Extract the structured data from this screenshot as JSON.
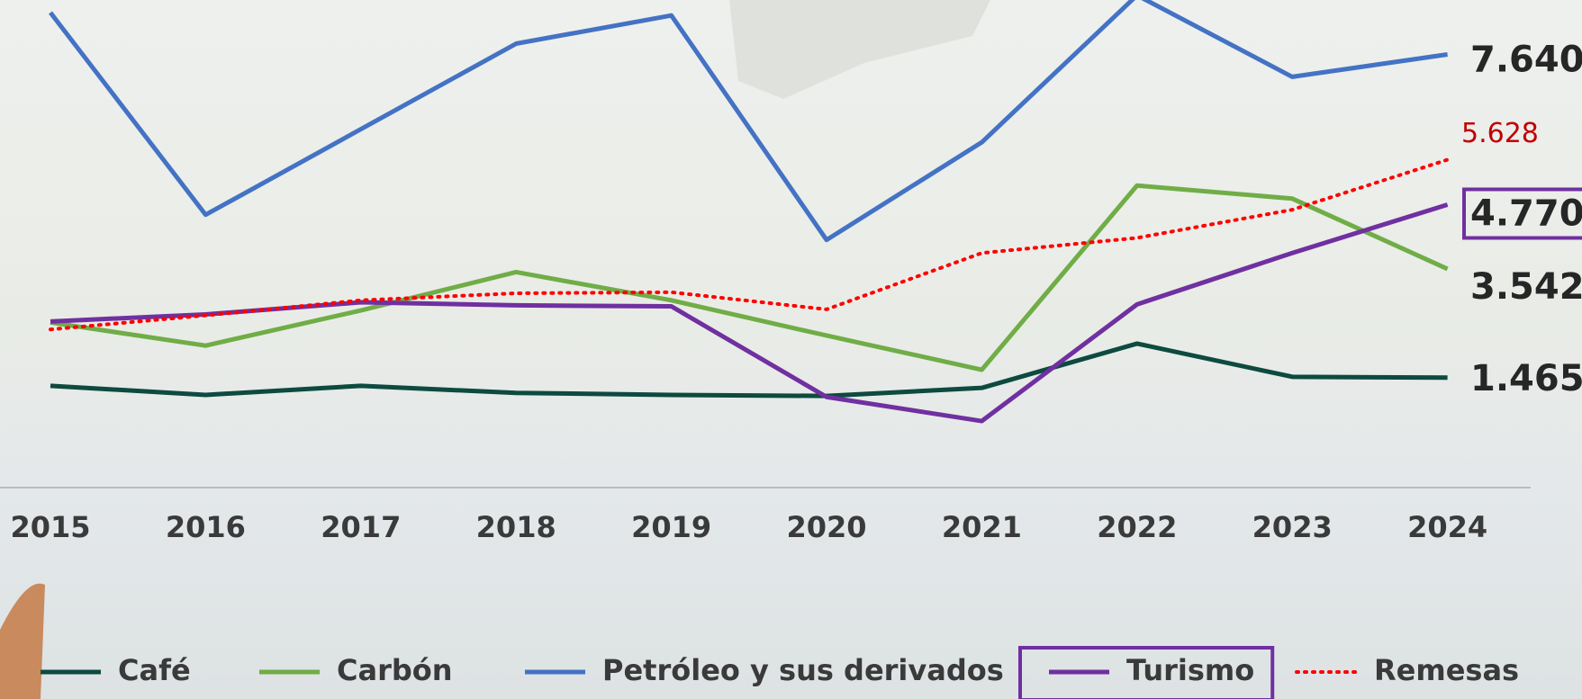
{
  "chart_data": {
    "type": "line",
    "categories": [
      "2015",
      "2016",
      "2017",
      "2018",
      "2019",
      "2020",
      "2021",
      "2022",
      "2023",
      "2024"
    ],
    "ylim": [
      0,
      8680
    ],
    "series": [
      {
        "name": "Café",
        "color": "#0d4a3f",
        "line_style": "solid",
        "highlight": false,
        "values": [
          1308,
          1135,
          1308,
          1173,
          1135,
          1115,
          1269,
          2115,
          1481,
          1465
        ],
        "value_labels": [
          null,
          null,
          null,
          null,
          null,
          null,
          null,
          null,
          null,
          "1.465"
        ]
      },
      {
        "name": "Carbón",
        "color": "#70ad47",
        "line_style": "solid",
        "highlight": false,
        "values": [
          2519,
          2077,
          2750,
          3481,
          2942,
          2269,
          1615,
          5135,
          4885,
          3542
        ],
        "value_labels": [
          null,
          null,
          null,
          null,
          null,
          null,
          null,
          null,
          null,
          "3.542"
        ]
      },
      {
        "name": "Petróleo y sus derivados",
        "color": "#4472c4",
        "line_style": "solid",
        "highlight": false,
        "values": [
          8440,
          4577,
          6212,
          7846,
          8385,
          4096,
          5962,
          8770,
          7212,
          7640
        ],
        "value_labels": [
          null,
          null,
          null,
          null,
          null,
          null,
          null,
          null,
          null,
          "7.640"
        ]
      },
      {
        "name": "Turismo",
        "color": "#7030a0",
        "line_style": "solid",
        "highlight": true,
        "values": [
          2538,
          2673,
          2904,
          2846,
          2827,
          1096,
          635,
          2865,
          3846,
          4770
        ],
        "value_labels": [
          null,
          null,
          null,
          null,
          null,
          null,
          null,
          null,
          null,
          "4.770"
        ]
      },
      {
        "name": "Remesas",
        "color": "#ff0000",
        "line_style": "dotted",
        "highlight": false,
        "values": [
          2385,
          2654,
          2942,
          3077,
          3096,
          2769,
          3846,
          4135,
          4673,
          5628
        ],
        "value_labels": [
          null,
          null,
          null,
          null,
          null,
          null,
          null,
          null,
          null,
          "5.628"
        ]
      }
    ]
  }
}
